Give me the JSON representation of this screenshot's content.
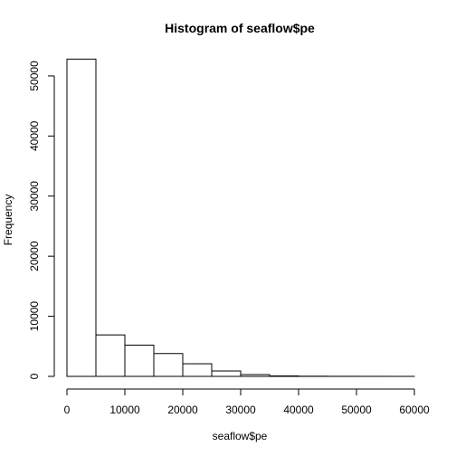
{
  "chart_data": {
    "type": "bar",
    "title": "Histogram of seaflow$pe",
    "xlabel": "seaflow$pe",
    "ylabel": "Frequency",
    "bins": [
      {
        "from": 0,
        "to": 5000,
        "count": 52800
      },
      {
        "from": 5000,
        "to": 10000,
        "count": 6900
      },
      {
        "from": 10000,
        "to": 15000,
        "count": 5200
      },
      {
        "from": 15000,
        "to": 20000,
        "count": 3800
      },
      {
        "from": 20000,
        "to": 25000,
        "count": 2100
      },
      {
        "from": 25000,
        "to": 30000,
        "count": 900
      },
      {
        "from": 30000,
        "to": 35000,
        "count": 300
      },
      {
        "from": 35000,
        "to": 40000,
        "count": 80
      },
      {
        "from": 40000,
        "to": 45000,
        "count": 30
      },
      {
        "from": 45000,
        "to": 50000,
        "count": 15
      },
      {
        "from": 50000,
        "to": 55000,
        "count": 8
      },
      {
        "from": 55000,
        "to": 60000,
        "count": 5
      }
    ],
    "xlim": [
      0,
      60000
    ],
    "ylim": [
      0,
      53000
    ],
    "x_ticks": [
      0,
      10000,
      20000,
      30000,
      40000,
      50000,
      60000
    ],
    "y_ticks": [
      0,
      10000,
      20000,
      30000,
      40000,
      50000
    ],
    "bar_fill": "#ffffff",
    "bar_stroke": "#000000",
    "grid": false,
    "legend": "none"
  }
}
